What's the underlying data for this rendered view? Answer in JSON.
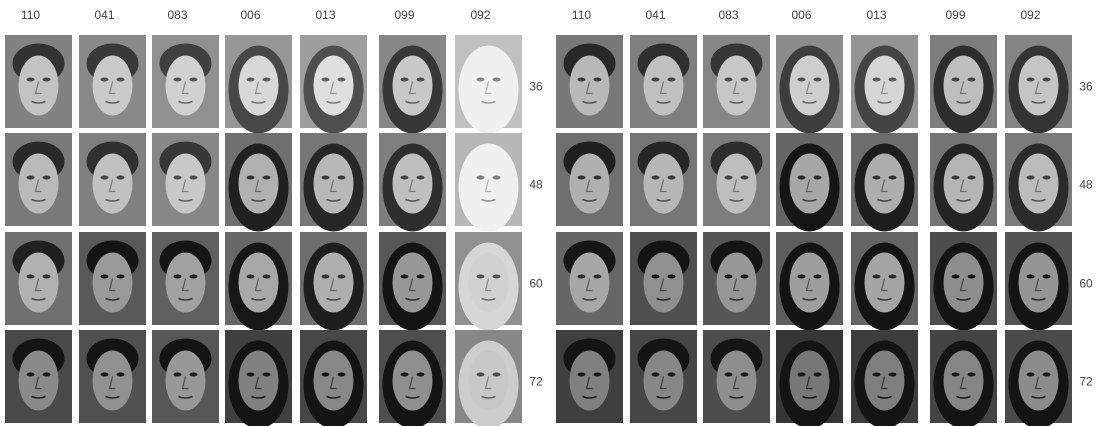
{
  "panels": [
    {
      "columns": [
        "110",
        "041",
        "083",
        "006",
        "013",
        "099",
        "092"
      ],
      "rows": [
        "36",
        "48",
        "60",
        "72"
      ]
    },
    {
      "columns": [
        "110",
        "041",
        "083",
        "006",
        "013",
        "099",
        "092"
      ],
      "rows": [
        "36",
        "48",
        "60",
        "72"
      ]
    }
  ]
}
